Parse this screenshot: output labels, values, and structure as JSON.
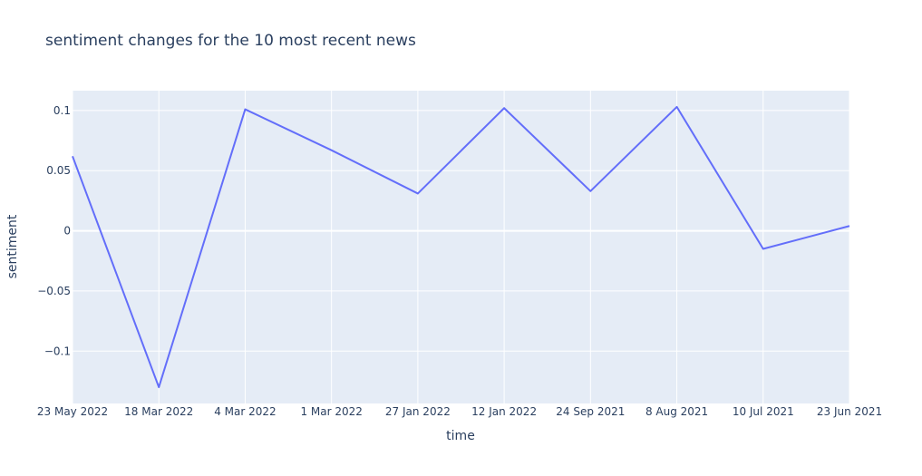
{
  "chart_data": {
    "type": "line",
    "title": "sentiment changes for the 10 most recent news",
    "xlabel": "time",
    "ylabel": "sentiment",
    "categories": [
      "23 May 2022",
      "18 Mar 2022",
      "4 Mar 2022",
      "1 Mar 2022",
      "27 Jan 2022",
      "12 Jan 2022",
      "24 Sep 2021",
      "8 Aug 2021",
      "10 Jul 2021",
      "23 Jun 2021"
    ],
    "series": [
      {
        "values": [
          0.062,
          -0.13,
          0.101,
          0.067,
          0.031,
          0.102,
          0.033,
          0.103,
          -0.015,
          0.004
        ]
      }
    ],
    "ylim": [
      -0.1435,
      0.1165
    ],
    "yticks": [
      0.1,
      0.05,
      0,
      -0.05,
      -0.1
    ],
    "ytick_labels": [
      "0.1",
      "0.05",
      "0",
      "−0.05",
      "−0.1"
    ],
    "grid": true,
    "colors": {
      "line": "#636efa",
      "plot_bg": "#e5ecf6",
      "grid": "#ffffff",
      "text": "#2a3f5f"
    }
  }
}
